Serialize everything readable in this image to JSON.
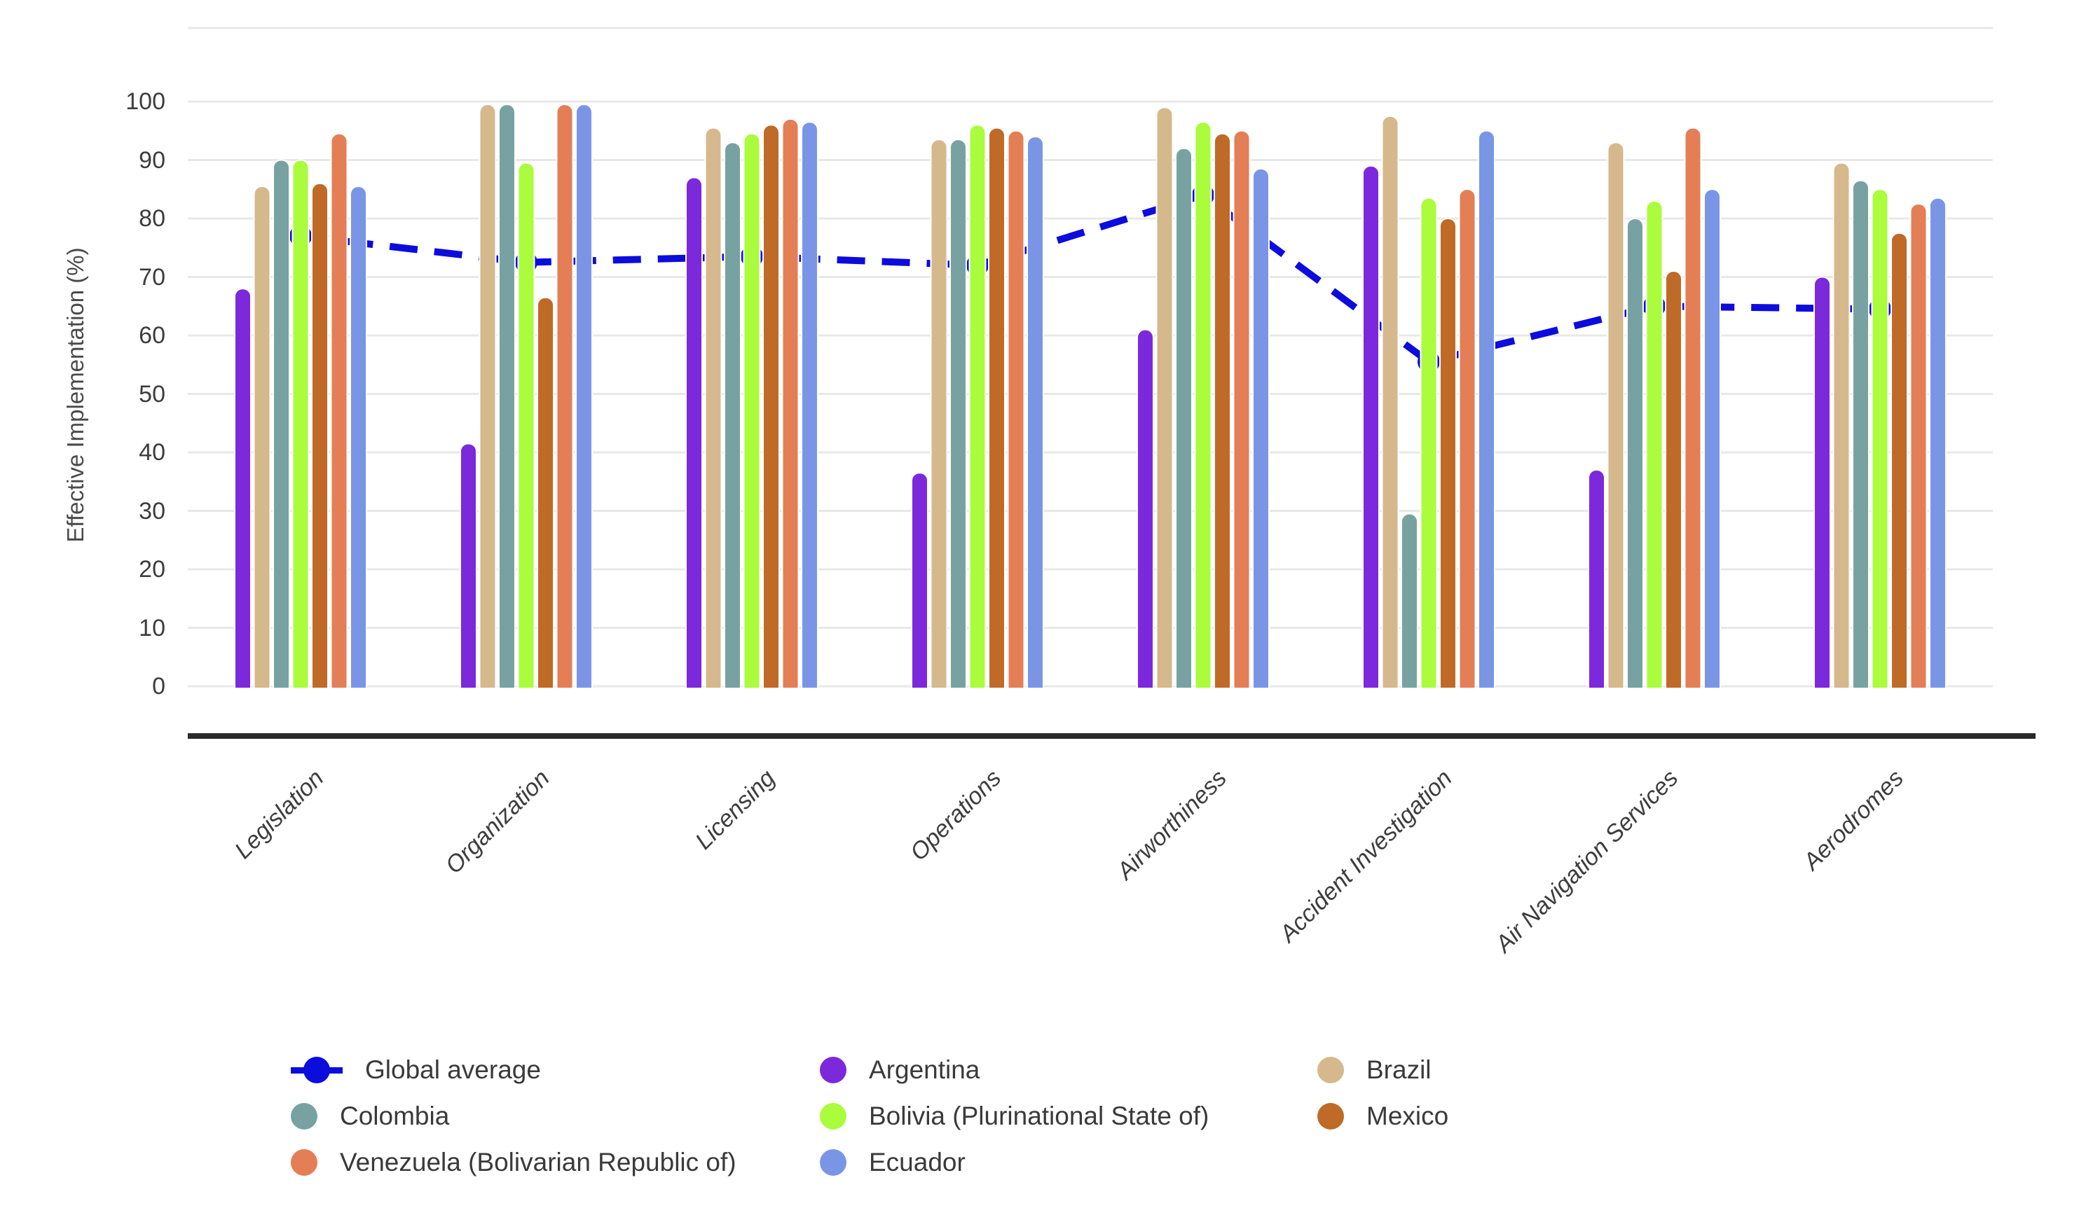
{
  "chart_data": {
    "type": "bar",
    "subtype": "grouped-bars-with-line-overlay",
    "ylabel": "Effective Implementation (%)",
    "ylim": [
      0,
      100
    ],
    "yticks": [
      0,
      10,
      20,
      30,
      40,
      50,
      60,
      70,
      80,
      90,
      100
    ],
    "grid": "horizontal",
    "categories": [
      "Legislation",
      "Organization",
      "Licensing",
      "Operations",
      "Airworthiness",
      "Accident Investigation",
      "Air Navigation Services",
      "Aerodromes"
    ],
    "series": [
      {
        "name": "Argentina",
        "color": "#7c29dc",
        "values": [
          68,
          41.5,
          87,
          36.5,
          61,
          89,
          37,
          70
        ]
      },
      {
        "name": "Brazil",
        "color": "#d5b98c",
        "values": [
          85.5,
          99.5,
          95.5,
          93.5,
          99,
          97.5,
          93,
          89.5
        ]
      },
      {
        "name": "Colombia",
        "color": "#78a2a2",
        "values": [
          90,
          99.5,
          93,
          93.5,
          92,
          29.5,
          80,
          86.5
        ]
      },
      {
        "name": "Bolivia (Plurinational State of)",
        "color": "#aafc3c",
        "values": [
          90,
          89.5,
          94.5,
          96,
          96.5,
          83.5,
          83,
          85
        ]
      },
      {
        "name": "Mexico",
        "color": "#bf6a26",
        "values": [
          86,
          66.5,
          96,
          95.5,
          94.5,
          80,
          71,
          77.5
        ]
      },
      {
        "name": "Venezuela (Bolivarian Republic of)",
        "color": "#e37e55",
        "values": [
          94.5,
          99.5,
          97,
          95,
          95,
          85,
          95.5,
          82.5
        ]
      },
      {
        "name": "Ecuador",
        "color": "#7b95e6",
        "values": [
          85.5,
          99.5,
          96.5,
          94,
          88.5,
          95,
          85,
          83.5
        ]
      }
    ],
    "line_series": {
      "name": "Global average",
      "color": "#0c0cdd",
      "style": "dashed",
      "marker": "circle",
      "values": [
        77,
        72.5,
        73.5,
        72,
        84,
        55.5,
        65,
        64.5
      ]
    },
    "legend_position": "bottom"
  },
  "legend": {
    "columns": [
      [
        {
          "label": "Global average",
          "color": "#0c0cdd",
          "marker": "line-dot"
        },
        {
          "label": "Colombia",
          "color": "#78a2a2",
          "marker": "circle"
        },
        {
          "label": "Venezuela (Bolivarian Republic of)",
          "color": "#e37e55",
          "marker": "circle"
        }
      ],
      [
        {
          "label": "Argentina",
          "color": "#7c29dc",
          "marker": "circle"
        },
        {
          "label": "Bolivia (Plurinational State of)",
          "color": "#aafc3c",
          "marker": "circle"
        },
        {
          "label": "Ecuador",
          "color": "#7b95e6",
          "marker": "circle"
        }
      ],
      [
        {
          "label": "Brazil",
          "color": "#d5b98c",
          "marker": "circle"
        },
        {
          "label": "Mexico",
          "color": "#bf6a26",
          "marker": "circle"
        }
      ]
    ]
  },
  "colors": {
    "background": "#ffffff",
    "gridline": "#e8e8e8",
    "axis_spine": "#2a2a2a",
    "tick_text": "#3d3d3d",
    "axis_title_text": "#4a4a4a",
    "legend_text": "#3a3a3a"
  }
}
